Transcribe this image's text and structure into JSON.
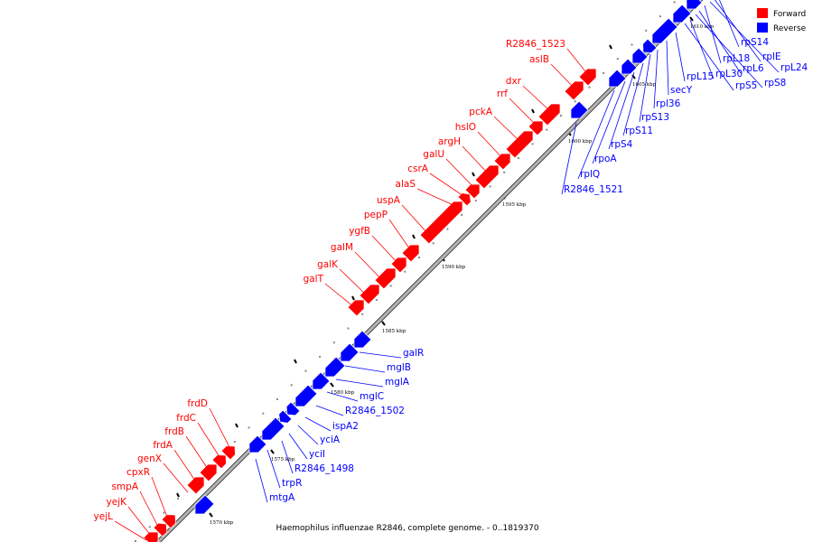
{
  "caption": "Haemophilus influenzae R2846, complete genome. - 0..1819370",
  "legend": [
    {
      "label": "Forward",
      "color": "#ff0000"
    },
    {
      "label": "Reverse",
      "color": "#0000ff"
    }
  ],
  "colors": {
    "forward": "#ff0000",
    "reverse": "#0000ff",
    "backbone": "#8a8a8a"
  },
  "tick_labels": [
    "1570 kbp",
    "1575 kbp",
    "1580 kbp",
    "1585 kbp",
    "1590 kbp",
    "1595 kbp",
    "1600 kbp",
    "1605 kbp",
    "1610 kbp"
  ],
  "forward_genes": [
    "yejL",
    "yejK",
    "smpA",
    "cpxR",
    "genX",
    "frdA",
    "frdB",
    "frdC",
    "frdD",
    "galT",
    "galK",
    "galM",
    "ygfB",
    "pepP",
    "uspA",
    "alaS",
    "csrA",
    "galU",
    "argH",
    "hslO",
    "pckA",
    "rrf",
    "dxr",
    "aslB",
    "R2846_1523"
  ],
  "reverse_genes": [
    "mtgA",
    "trpR",
    "R2846_1498",
    "yciI",
    "yciA",
    "ispA2",
    "R2846_1502",
    "mglC",
    "mglA",
    "mglB",
    "galR",
    "R2846_1521",
    "rplQ",
    "rpoA",
    "rpS4",
    "rpS11",
    "rpS13",
    "rpl36",
    "secY",
    "rpL15",
    "rpS5",
    "rpL30",
    "rpS8",
    "rpL6",
    "rpL18",
    "rpL24",
    "rplE",
    "rpS14"
  ]
}
